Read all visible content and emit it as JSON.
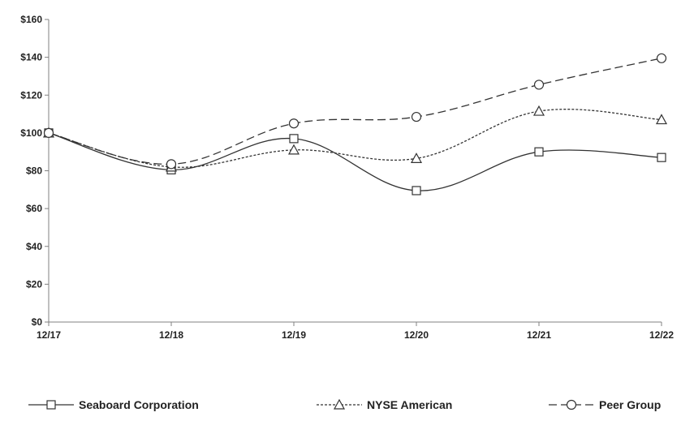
{
  "chart_data": {
    "type": "line",
    "categories": [
      "12/17",
      "12/18",
      "12/19",
      "12/20",
      "12/21",
      "12/22"
    ],
    "yticks": [
      "$0",
      "$20",
      "$40",
      "$60",
      "$80",
      "$100",
      "$120",
      "$140",
      "$160"
    ],
    "ylim": [
      0,
      160
    ],
    "grid": false,
    "legend_position": "bottom",
    "series": [
      {
        "name": "Seaboard Corporation",
        "marker": "square",
        "dash": "solid",
        "color": "#333333",
        "values": [
          100,
          80.5,
          97,
          69.5,
          90,
          87
        ]
      },
      {
        "name": "NYSE American",
        "marker": "triangle",
        "dash": "dotted",
        "color": "#333333",
        "values": [
          100,
          82,
          91,
          86.5,
          111.5,
          107
        ]
      },
      {
        "name": "Peer Group",
        "marker": "circle",
        "dash": "dashed",
        "color": "#333333",
        "values": [
          100,
          83.5,
          105,
          108.5,
          125.5,
          139.5
        ]
      }
    ]
  }
}
